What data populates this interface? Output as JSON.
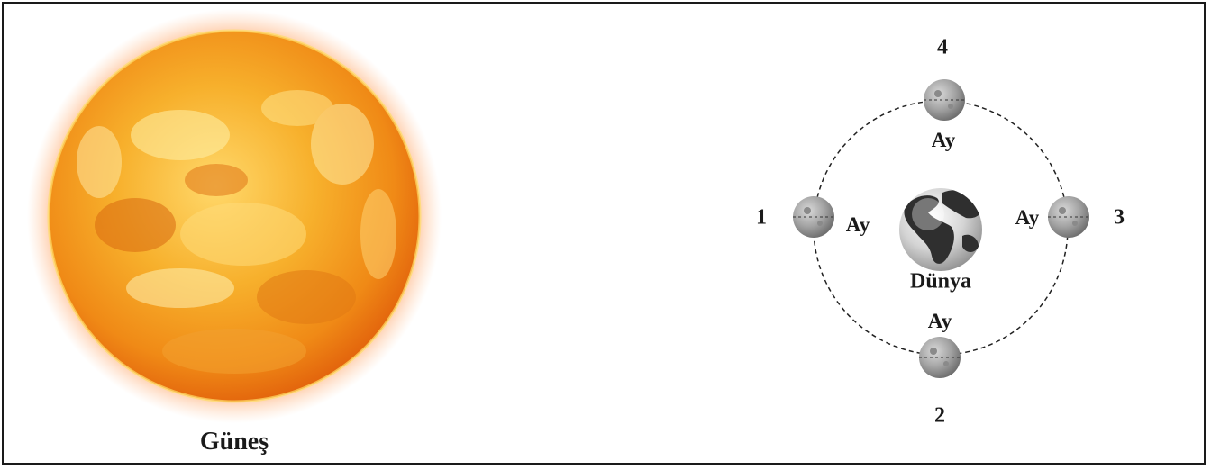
{
  "sun": {
    "label": "Güneş"
  },
  "earth": {
    "label": "Dünya"
  },
  "moon_label": "Ay",
  "positions": [
    {
      "number": "1",
      "moon_label": "Ay"
    },
    {
      "number": "2",
      "moon_label": "Ay"
    },
    {
      "number": "3",
      "moon_label": "Ay"
    },
    {
      "number": "4",
      "moon_label": "Ay"
    }
  ],
  "colors": {
    "sun_core": "#ffd25a",
    "sun_mid": "#f5a21f",
    "sun_edge": "#e86a10",
    "corona": "#ff7a2a",
    "moon": "#9a9a9a",
    "earth_land": "#3a3a3a",
    "earth_ocean": "#cfcfcf",
    "orbit": "#222222"
  }
}
